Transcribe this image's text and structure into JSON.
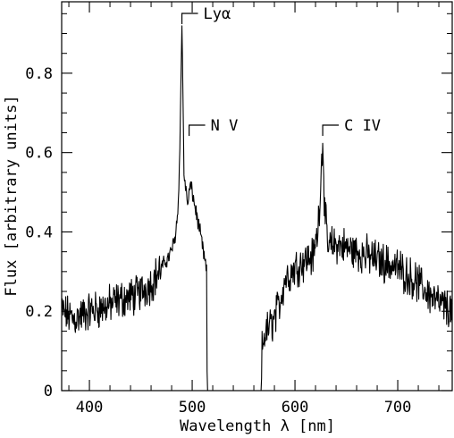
{
  "chart_data": {
    "type": "line",
    "title": "",
    "xlabel": "Wavelength λ [nm]",
    "ylabel": "Flux [arbitrary units]",
    "xlim": [
      373,
      753
    ],
    "ylim": [
      0,
      0.98
    ],
    "xticks": [
      400,
      500,
      600,
      700
    ],
    "xtick_labels": [
      "400",
      "500",
      "600",
      "700"
    ],
    "yticks": [
      0,
      0.2,
      0.4,
      0.6,
      0.8
    ],
    "ytick_labels": [
      "0",
      "0.2",
      "0.4",
      "0.6",
      "0.8"
    ],
    "annotations": [
      {
        "text": "Lyα",
        "x": 490
      },
      {
        "text": "N V",
        "x": 497
      },
      {
        "text": "C IV",
        "x": 627
      }
    ],
    "series": [
      {
        "x": [
          373,
          385,
          400,
          415,
          430,
          445,
          460,
          470,
          478,
          483,
          486,
          488,
          489,
          490,
          491,
          492,
          494,
          496,
          498,
          500,
          503,
          506,
          509,
          512,
          514,
          514.5,
          515
        ],
        "y": [
          0.2,
          0.18,
          0.2,
          0.21,
          0.23,
          0.24,
          0.27,
          0.31,
          0.34,
          0.38,
          0.45,
          0.6,
          0.78,
          0.92,
          0.75,
          0.55,
          0.5,
          0.47,
          0.52,
          0.5,
          0.46,
          0.42,
          0.38,
          0.33,
          0.3,
          0.05,
          0.0
        ]
      },
      {
        "x": [
          567,
          568,
          570,
          575,
          580,
          585,
          590,
          600,
          610,
          618,
          622,
          625,
          627,
          629,
          632,
          640,
          660,
          680,
          700,
          720,
          740,
          753
        ],
        "y": [
          0.0,
          0.1,
          0.14,
          0.16,
          0.18,
          0.22,
          0.28,
          0.31,
          0.33,
          0.34,
          0.4,
          0.52,
          0.64,
          0.45,
          0.36,
          0.37,
          0.35,
          0.33,
          0.31,
          0.27,
          0.22,
          0.2
        ]
      }
    ]
  }
}
